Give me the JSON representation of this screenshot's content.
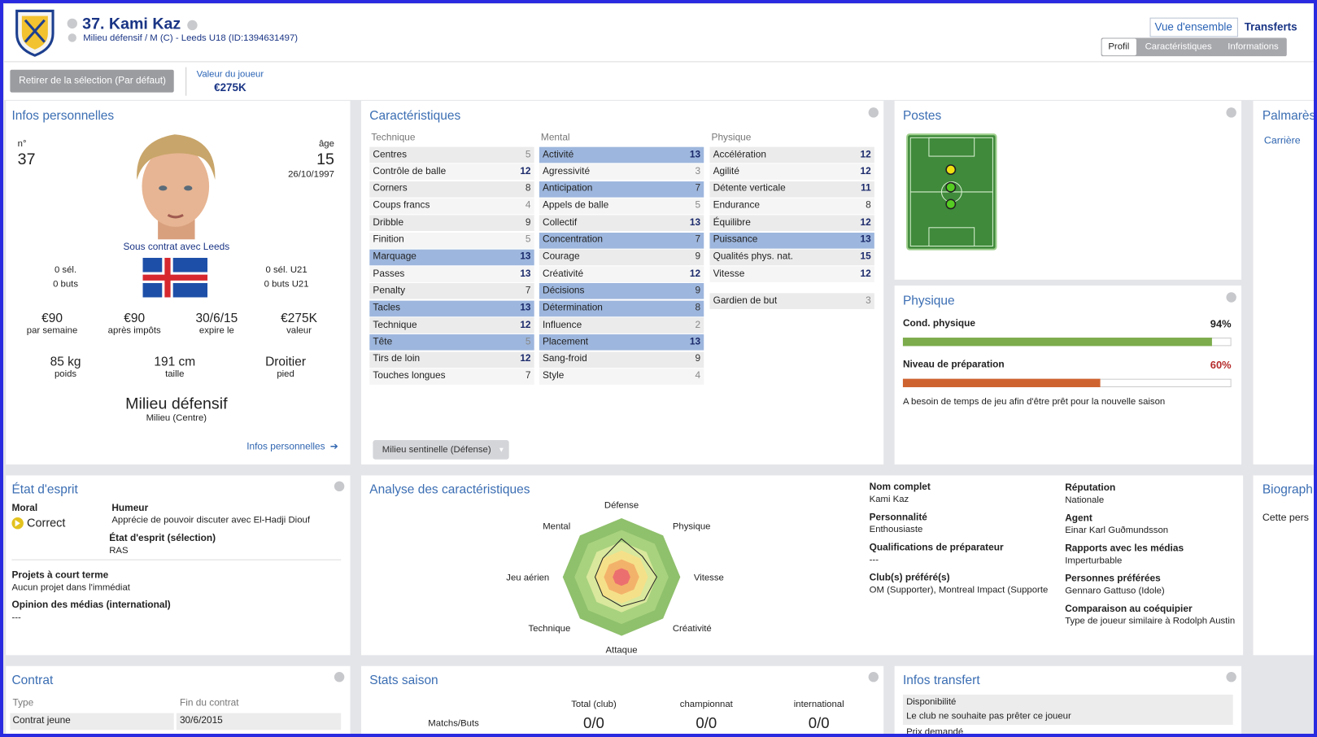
{
  "header": {
    "name": "37. Kami Kaz",
    "subtitle": "Milieu défensif / M (C) - Leeds U18 (ID:1394631497)",
    "overview_button": "Vue d'ensemble",
    "transfers_link": "Transferts",
    "tabs": [
      "Profil",
      "Caractéristiques",
      "Informations"
    ],
    "release_button": "Retirer de la sélection (Par défaut)",
    "value_label": "Valeur du joueur",
    "value": "€275K"
  },
  "personal": {
    "title": "Infos personnelles",
    "number_label": "n°",
    "number": "37",
    "age_label": "âge",
    "age": "15",
    "birth_date": "26/10/1997",
    "contract_status": "Sous contrat avec Leeds",
    "caps": "0 sél.",
    "goals": "0 buts",
    "caps_u21": "0 sél. U21",
    "goals_u21": "0 buts U21",
    "facts": [
      {
        "value": "€90",
        "caption": "par semaine"
      },
      {
        "value": "€90",
        "caption": "après impôts"
      },
      {
        "value": "30/6/15",
        "caption": "expire le"
      },
      {
        "value": "€275K",
        "caption": "valeur"
      },
      {
        "value": "85 kg",
        "caption": "poids"
      },
      {
        "value": "191 cm",
        "caption": "taille"
      },
      {
        "value": "Droitier",
        "caption": "pied"
      }
    ],
    "position": "Milieu défensif",
    "position_detail": "Milieu (Centre)",
    "link": "Infos personnelles"
  },
  "attributes": {
    "title": "Caractéristiques",
    "columns": [
      {
        "heading": "Technique",
        "rows": [
          {
            "name": "Centres",
            "value": 5,
            "highlight": false
          },
          {
            "name": "Contrôle de balle",
            "value": 12,
            "highlight": false
          },
          {
            "name": "Corners",
            "value": 8,
            "highlight": false
          },
          {
            "name": "Coups francs",
            "value": 4,
            "highlight": false
          },
          {
            "name": "Dribble",
            "value": 9,
            "highlight": false
          },
          {
            "name": "Finition",
            "value": 5,
            "highlight": false
          },
          {
            "name": "Marquage",
            "value": 13,
            "highlight": true
          },
          {
            "name": "Passes",
            "value": 13,
            "highlight": false
          },
          {
            "name": "Penalty",
            "value": 7,
            "highlight": false
          },
          {
            "name": "Tacles",
            "value": 13,
            "highlight": true
          },
          {
            "name": "Technique",
            "value": 12,
            "highlight": false
          },
          {
            "name": "Tête",
            "value": 5,
            "highlight": true
          },
          {
            "name": "Tirs de loin",
            "value": 12,
            "highlight": false
          },
          {
            "name": "Touches longues",
            "value": 7,
            "highlight": false
          }
        ]
      },
      {
        "heading": "Mental",
        "rows": [
          {
            "name": "Activité",
            "value": 13,
            "highlight": true
          },
          {
            "name": "Agressivité",
            "value": 3,
            "highlight": false
          },
          {
            "name": "Anticipation",
            "value": 7,
            "highlight": true
          },
          {
            "name": "Appels de balle",
            "value": 5,
            "highlight": false
          },
          {
            "name": "Collectif",
            "value": 13,
            "highlight": false
          },
          {
            "name": "Concentration",
            "value": 7,
            "highlight": true
          },
          {
            "name": "Courage",
            "value": 9,
            "highlight": false
          },
          {
            "name": "Créativité",
            "value": 12,
            "highlight": false
          },
          {
            "name": "Décisions",
            "value": 9,
            "highlight": true
          },
          {
            "name": "Détermination",
            "value": 8,
            "highlight": true
          },
          {
            "name": "Influence",
            "value": 2,
            "highlight": false
          },
          {
            "name": "Placement",
            "value": 13,
            "highlight": true
          },
          {
            "name": "Sang-froid",
            "value": 9,
            "highlight": false
          },
          {
            "name": "Style",
            "value": 4,
            "highlight": false
          }
        ]
      },
      {
        "heading": "Physique",
        "rows": [
          {
            "name": "Accélération",
            "value": 12,
            "highlight": false
          },
          {
            "name": "Agilité",
            "value": 12,
            "highlight": false
          },
          {
            "name": "Détente verticale",
            "value": 11,
            "highlight": false
          },
          {
            "name": "Endurance",
            "value": 8,
            "highlight": false
          },
          {
            "name": "Équilibre",
            "value": 12,
            "highlight": false
          },
          {
            "name": "Puissance",
            "value": 13,
            "highlight": true
          },
          {
            "name": "Qualités phys. nat.",
            "value": 15,
            "highlight": false
          },
          {
            "name": "Vitesse",
            "value": 12,
            "highlight": false
          }
        ]
      }
    ],
    "goalkeeping": {
      "name": "Gardien de but",
      "value": 3
    },
    "role": "Milieu sentinelle (Défense)"
  },
  "positions": {
    "title": "Postes"
  },
  "physical": {
    "title": "Physique",
    "condition_label": "Cond. physique",
    "condition": {
      "value": 94,
      "label": "94%"
    },
    "preparation_label": "Niveau de préparation",
    "preparation": {
      "value": 60,
      "label": "60%"
    },
    "note": "A besoin de temps de jeu afin d'être prêt pour la nouvelle saison"
  },
  "honours": {
    "title": "Palmarès",
    "tab": "Carrière"
  },
  "biography": {
    "title": "Biograph",
    "text": "Cette pers"
  },
  "mood": {
    "title": "État d'esprit",
    "morale_label": "Moral",
    "morale": "Correct",
    "humour_label": "Humeur",
    "humour": "Apprécie de pouvoir discuter avec El-Hadji Diouf",
    "selection_label": "État d'esprit (sélection)",
    "selection": "RAS",
    "plans_label": "Projets à court terme",
    "plans": "Aucun projet dans l'immédiat",
    "media_label": "Opinion des médias (international)",
    "media": "---"
  },
  "analysis": {
    "title": "Analyse des caractéristiques",
    "radar": {
      "axes": [
        "Défense",
        "Physique",
        "Vitesse",
        "Créativité",
        "Attaque",
        "Technique",
        "Jeu aérien",
        "Mental"
      ],
      "values": [
        13,
        10,
        12,
        11,
        10,
        9,
        9,
        9
      ],
      "rlim": [
        0,
        20
      ]
    },
    "info_left": [
      {
        "label": "Nom complet",
        "value": "Kami Kaz"
      },
      {
        "label": "Personnalité",
        "value": "Enthousiaste"
      },
      {
        "label": "Qualifications de préparateur",
        "value": "---"
      },
      {
        "label": "Club(s) préféré(s)",
        "value": "OM (Supporter), Montreal Impact (Supporte"
      }
    ],
    "info_right": [
      {
        "label": "Réputation",
        "value": "Nationale"
      },
      {
        "label": "Agent",
        "value": "Einar Karl Guðmundsson"
      },
      {
        "label": "Rapports avec les médias",
        "value": "Imperturbable"
      },
      {
        "label": "Personnes préférées",
        "value": "Gennaro Gattuso (Idole)"
      },
      {
        "label": "Comparaison au coéquipier",
        "value": "Type de joueur similaire à Rodolph Austin"
      }
    ]
  },
  "contract": {
    "title": "Contrat",
    "headers": [
      "Type",
      "Fin du contrat"
    ],
    "row": [
      "Contrat jeune",
      "30/6/2015"
    ]
  },
  "season": {
    "title": "Stats saison",
    "columns": [
      "Total (club)",
      "championnat",
      "international"
    ],
    "row_label": "Matchs/Buts",
    "values": [
      "0/0",
      "0/0",
      "0/0"
    ]
  },
  "transfer": {
    "title": "Infos transfert",
    "availability_label": "Disponibilité",
    "availability": "Le club ne souhaite pas prêter ce joueur",
    "price_label": "Prix demandé"
  }
}
